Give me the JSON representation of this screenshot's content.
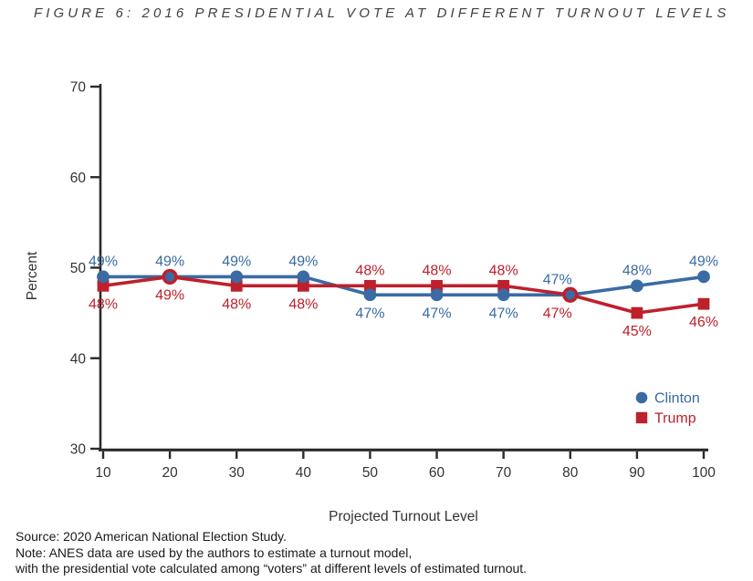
{
  "figure_title": "FIGURE 6: 2016 PRESIDENTIAL VOTE AT DIFFERENT TURNOUT LEVELS",
  "chart_data": {
    "type": "line",
    "title": "FIGURE 6: 2016 PRESIDENTIAL VOTE AT DIFFERENT TURNOUT LEVELS",
    "xlabel": "Projected Turnout Level",
    "ylabel": "Percent",
    "x": [
      10,
      20,
      30,
      40,
      50,
      60,
      70,
      80,
      90,
      100
    ],
    "xticks": [
      "10",
      "20",
      "30",
      "40",
      "50",
      "60",
      "70",
      "80",
      "90",
      "100"
    ],
    "yticks": [
      "30",
      "40",
      "50",
      "60",
      "70"
    ],
    "ytick_values": [
      30,
      40,
      50,
      60,
      70
    ],
    "xlim": [
      10,
      100
    ],
    "ylim": [
      30,
      70
    ],
    "grid": false,
    "legend_position": "inside-right-bottom",
    "series": [
      {
        "name": "Clinton",
        "color": "#3A6BA3",
        "marker": "circle",
        "values": [
          49,
          49,
          49,
          49,
          47,
          47,
          47,
          47,
          48,
          49
        ],
        "point_labels": [
          "49%",
          "49%",
          "49%",
          "49%",
          "47%",
          "47%",
          "47%",
          "47%",
          "48%",
          "49%"
        ],
        "label_positions": [
          "above",
          "above",
          "above",
          "above",
          "below",
          "below",
          "below",
          "above",
          "above",
          "above"
        ],
        "label_dx": [
          0,
          0,
          0,
          0,
          0,
          0,
          0,
          -14,
          0,
          0
        ],
        "overlap_ring": [
          false,
          false,
          false,
          false,
          false,
          false,
          false,
          false,
          false,
          false
        ]
      },
      {
        "name": "Trump",
        "color": "#BE202C",
        "marker": "square",
        "values": [
          48,
          49,
          48,
          48,
          48,
          48,
          48,
          47,
          45,
          46
        ],
        "point_labels": [
          "48%",
          "49%",
          "48%",
          "48%",
          "48%",
          "48%",
          "48%",
          "47%",
          "45%",
          "46%"
        ],
        "label_positions": [
          "below",
          "below",
          "below",
          "below",
          "above",
          "above",
          "above",
          "below",
          "below",
          "below"
        ],
        "label_dx": [
          0,
          0,
          0,
          0,
          0,
          0,
          0,
          -14,
          0,
          0
        ],
        "overlap_ring": [
          false,
          true,
          false,
          false,
          false,
          false,
          false,
          true,
          false,
          false
        ]
      }
    ],
    "legend_entries": [
      "Clinton",
      "Trump"
    ]
  },
  "notes": [
    "Source: 2020 American National Election Study.",
    "Note: ANES data are used by the authors to estimate a turnout model,",
    "with the presidential vote calculated among “voters” at different levels of estimated turnout."
  ],
  "colors": {
    "axis": "#2b2a29",
    "tick_label": "#333333",
    "axis_title": "#333333",
    "figure_title": "#414042",
    "clinton_blue": "#3A6BA3",
    "trump_red": "#BE202C"
  }
}
